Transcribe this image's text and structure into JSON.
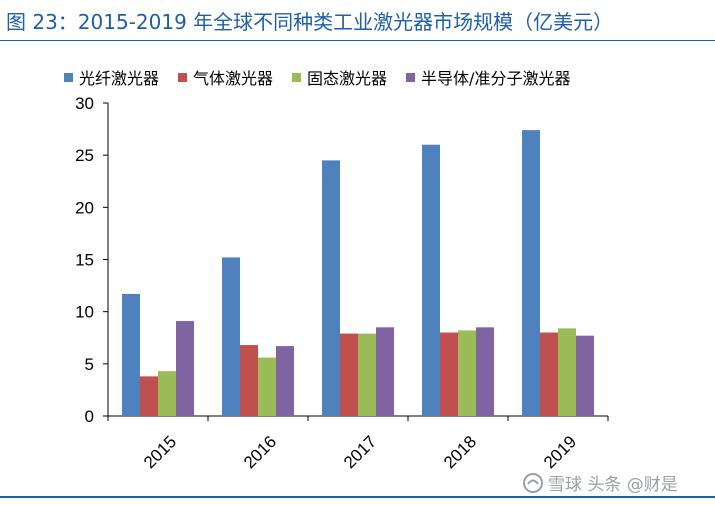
{
  "title": "图 23：2015-2019 年全球不同种类工业激光器市场规模（亿美元）",
  "watermark": "雪球  头条 @财是",
  "colors": {
    "title": "#1f5fa8",
    "series": [
      "#4f81bd",
      "#c0504d",
      "#9bbb59",
      "#8064a2"
    ]
  },
  "chart_data": {
    "type": "bar",
    "title": "",
    "xlabel": "",
    "ylabel": "",
    "categories": [
      "2015",
      "2016",
      "2017",
      "2018",
      "2019"
    ],
    "series": [
      {
        "name": "光纤激光器",
        "values": [
          11.7,
          15.2,
          24.5,
          26.0,
          27.4
        ]
      },
      {
        "name": "气体激光器",
        "values": [
          3.8,
          6.8,
          7.9,
          8.0,
          8.0
        ]
      },
      {
        "name": "固态激光器",
        "values": [
          4.3,
          5.6,
          7.9,
          8.2,
          8.4
        ]
      },
      {
        "name": "半导体/准分子激光器",
        "values": [
          9.1,
          6.7,
          8.5,
          8.5,
          7.7
        ]
      }
    ],
    "ylim": [
      0,
      30
    ],
    "yticks": [
      "0",
      "5",
      "10",
      "15",
      "20",
      "25",
      "30"
    ],
    "grid": false,
    "legend_position": "top"
  }
}
